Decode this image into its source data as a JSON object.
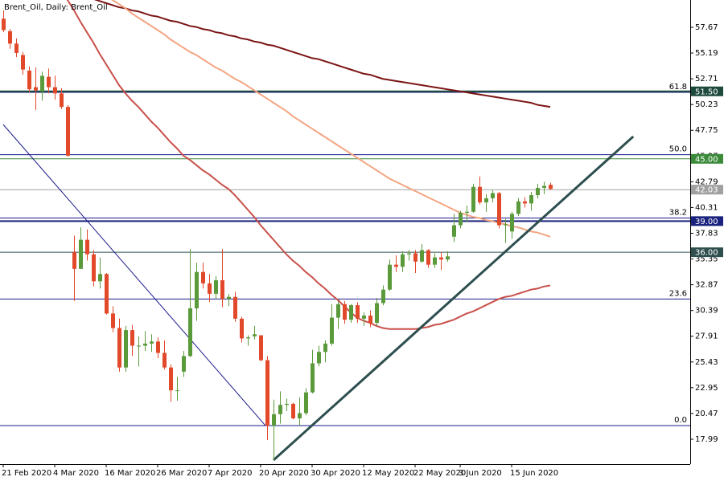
{
  "chart_data": {
    "type": "candlestick",
    "title": "Brent_Oil, Daily:  Brent_Oil",
    "categories": [
      "21 Feb 2020",
      null,
      null,
      null,
      null,
      null,
      null,
      null,
      "4 Mar 2020",
      null,
      null,
      null,
      null,
      null,
      null,
      null,
      "16 Mar 2020",
      null,
      null,
      null,
      null,
      null,
      null,
      null,
      "26 Mar 2020",
      null,
      null,
      null,
      null,
      null,
      null,
      null,
      "7 Apr 2020",
      null,
      null,
      null,
      null,
      null,
      null,
      null,
      "20 Apr 2020",
      null,
      null,
      null,
      null,
      null,
      null,
      null,
      "30 Apr 2020",
      null,
      null,
      null,
      null,
      null,
      null,
      null,
      "12 May 2020",
      null,
      null,
      null,
      null,
      null,
      null,
      null,
      "22 May 2020",
      null,
      null,
      null,
      null,
      null,
      null,
      "3 Jun 2020",
      null,
      null,
      null,
      null,
      null,
      null,
      null,
      "15 Jun 2020",
      null,
      null,
      null,
      null,
      null,
      null
    ],
    "open": [
      58.5,
      57.3,
      56.1,
      55.0,
      53.5,
      51.9,
      51.5,
      52.9,
      51.9,
      51.3,
      50.0,
      36.0,
      34.4,
      37.2,
      35.8,
      33.2,
      33.9,
      30.1,
      28.7,
      24.9,
      28.5,
      27.0,
      27.0,
      27.2,
      27.4,
      26.3,
      24.9,
      22.7,
      24.5,
      26.0,
      30.6,
      34.1,
      33.0,
      32.0,
      33.3,
      31.5,
      31.7,
      29.6,
      27.7,
      27.9,
      28.0,
      25.6,
      19.3,
      20.4,
      21.3,
      21.4,
      20.0,
      20.5,
      22.5,
      25.3,
      26.4,
      27.2,
      29.7,
      31.0,
      29.5,
      30.9,
      29.6,
      29.9,
      29.2,
      31.1,
      32.4,
      34.8,
      34.6,
      35.8,
      35.9,
      35.1,
      36.2,
      34.8,
      35.5,
      35.3,
      37.5,
      38.6,
      39.8,
      39.9,
      42.3,
      40.8,
      41.2,
      41.7,
      38.6,
      38.0,
      39.7,
      40.9,
      40.7,
      41.5,
      42.2,
      42.5
    ],
    "high": [
      59.3,
      57.5,
      56.6,
      55.3,
      53.9,
      53.8,
      53.4,
      53.7,
      53.0,
      51.8,
      50.2,
      37.6,
      38.4,
      38.2,
      36.2,
      35.5,
      34.0,
      30.8,
      29.6,
      28.9,
      29.0,
      27.9,
      28.4,
      28.1,
      27.8,
      27.5,
      25.2,
      24.0,
      26.5,
      36.3,
      35.0,
      35.0,
      33.9,
      33.7,
      36.3,
      32.0,
      32.2,
      29.8,
      28.0,
      28.9,
      28.0,
      26.0,
      21.8,
      22.6,
      21.9,
      21.5,
      22.0,
      22.9,
      26.6,
      27.0,
      27.5,
      31.0,
      31.3,
      31.3,
      31.0,
      31.2,
      30.2,
      30.4,
      31.6,
      32.8,
      35.3,
      35.7,
      36.1,
      36.2,
      36.2,
      36.8,
      36.3,
      35.9,
      36.0,
      36.1,
      39.7,
      40.0,
      40.5,
      42.6,
      43.3,
      41.6,
      42.0,
      41.8,
      39.2,
      39.9,
      41.2,
      41.3,
      41.8,
      42.6,
      42.8,
      42.7
    ],
    "low": [
      57.2,
      55.6,
      54.8,
      53.1,
      51.4,
      49.7,
      50.6,
      51.3,
      50.7,
      49.8,
      45.2,
      31.3,
      34.4,
      35.2,
      32.7,
      32.5,
      30.0,
      28.3,
      24.5,
      24.5,
      26.0,
      25.0,
      26.5,
      26.4,
      25.8,
      24.7,
      21.6,
      21.7,
      24.0,
      25.9,
      29.4,
      32.5,
      31.2,
      31.5,
      30.7,
      30.8,
      29.3,
      27.3,
      27.0,
      27.6,
      25.5,
      17.9,
      16.0,
      19.5,
      20.7,
      19.9,
      19.3,
      20.3,
      22.4,
      25.0,
      25.4,
      27.0,
      28.6,
      29.1,
      29.2,
      29.2,
      28.9,
      28.8,
      28.9,
      30.9,
      32.3,
      34.1,
      34.1,
      35.2,
      34.0,
      35.0,
      34.5,
      34.5,
      34.3,
      35.1,
      37.0,
      38.3,
      38.9,
      39.8,
      40.6,
      39.9,
      40.8,
      38.3,
      36.9,
      37.3,
      39.5,
      40.3,
      40.0,
      41.2,
      41.6,
      42.0
    ],
    "close": [
      57.4,
      56.1,
      55.2,
      53.6,
      51.7,
      51.6,
      53.0,
      51.9,
      51.3,
      50.0,
      45.3,
      34.4,
      37.2,
      35.8,
      33.2,
      33.9,
      30.1,
      28.7,
      24.9,
      28.5,
      27.0,
      27.0,
      27.2,
      27.4,
      26.3,
      24.9,
      22.7,
      22.7,
      26.0,
      30.6,
      34.1,
      33.0,
      32.0,
      33.3,
      31.5,
      31.7,
      29.6,
      27.7,
      27.8,
      28.1,
      25.6,
      19.3,
      20.4,
      21.3,
      21.4,
      20.0,
      20.5,
      22.5,
      25.3,
      26.4,
      27.2,
      29.7,
      31.0,
      29.5,
      30.9,
      29.6,
      29.9,
      29.2,
      31.1,
      32.4,
      34.8,
      34.6,
      35.8,
      35.9,
      35.1,
      36.2,
      34.8,
      35.5,
      35.3,
      35.6,
      38.6,
      39.8,
      39.9,
      42.3,
      40.8,
      41.2,
      41.7,
      38.6,
      38.7,
      39.7,
      40.9,
      40.7,
      41.5,
      42.2,
      42.4,
      42.1
    ],
    "up_color": "#5b9a3b",
    "down_color": "#e2492b",
    "xlim": [
      -0.5,
      106.75
    ],
    "ylim": [
      15.59,
      60.3
    ],
    "yticks": [
      57.67,
      55.19,
      52.71,
      50.23,
      47.75,
      45.27,
      42.79,
      40.31,
      37.83,
      35.35,
      32.87,
      30.39,
      27.91,
      25.43,
      22.95,
      20.47,
      17.99
    ],
    "moving_averages": [
      {
        "color": "#7b1414",
        "values": [
          63.2,
          63.0,
          62.8,
          62.6,
          62.4,
          62.2,
          62.0,
          61.8,
          61.6,
          61.4,
          61.2,
          61.0,
          60.8,
          60.6,
          60.4,
          60.2,
          60.0,
          59.8,
          59.6,
          59.5,
          59.3,
          59.2,
          59.0,
          58.8,
          58.7,
          58.5,
          58.3,
          58.2,
          58.0,
          57.8,
          57.7,
          57.5,
          57.4,
          57.2,
          57.1,
          56.9,
          56.8,
          56.6,
          56.5,
          56.3,
          56.2,
          56.0,
          55.9,
          55.7,
          55.5,
          55.3,
          55.1,
          54.9,
          54.7,
          54.6,
          54.4,
          54.2,
          54.0,
          53.8,
          53.6,
          53.4,
          53.2,
          53.1,
          52.9,
          52.7,
          52.6,
          52.5,
          52.4,
          52.3,
          52.2,
          52.1,
          52.0,
          51.9,
          51.8,
          51.7,
          51.6,
          51.5,
          51.4,
          51.3,
          51.2,
          51.1,
          51.0,
          50.9,
          50.8,
          50.7,
          50.6,
          50.5,
          50.4,
          50.2,
          50.1,
          50.0
        ]
      },
      {
        "color": "#f4a582",
        "values": [
          67.9,
          67.5,
          67.0,
          66.6,
          66.1,
          65.7,
          65.2,
          64.8,
          64.3,
          63.9,
          63.4,
          63.0,
          62.5,
          62.1,
          61.6,
          61.2,
          60.7,
          60.3,
          59.9,
          59.5,
          59.0,
          58.6,
          58.2,
          57.8,
          57.4,
          57.0,
          56.5,
          56.1,
          55.7,
          55.3,
          55.0,
          54.6,
          54.2,
          53.8,
          53.5,
          53.1,
          52.7,
          52.4,
          52.0,
          51.6,
          51.2,
          50.8,
          50.4,
          50.0,
          49.6,
          49.1,
          48.7,
          48.3,
          47.9,
          47.5,
          47.1,
          46.7,
          46.3,
          45.9,
          45.5,
          45.1,
          44.7,
          44.3,
          43.9,
          43.5,
          43.1,
          42.8,
          42.5,
          42.2,
          41.9,
          41.6,
          41.3,
          41.0,
          40.7,
          40.4,
          40.1,
          39.8,
          39.6,
          39.4,
          39.3,
          39.1,
          39.0,
          38.8,
          38.7,
          38.5,
          38.4,
          38.2,
          38.0,
          37.9,
          37.7,
          37.5
        ]
      },
      {
        "color": "#c9504a",
        "values": [
          71.3,
          70.2,
          69.1,
          68.0,
          66.9,
          65.8,
          64.7,
          63.6,
          62.5,
          61.4,
          60.3,
          59.3,
          58.2,
          57.2,
          56.2,
          55.1,
          54.1,
          53.1,
          52.1,
          51.3,
          50.6,
          50.0,
          49.3,
          48.6,
          48.0,
          47.3,
          46.6,
          46.0,
          45.3,
          44.9,
          44.4,
          43.9,
          43.5,
          43.0,
          42.5,
          42.1,
          41.5,
          40.8,
          40.1,
          39.4,
          38.6,
          37.9,
          37.2,
          36.5,
          35.8,
          35.2,
          34.7,
          34.1,
          33.6,
          33.0,
          32.5,
          31.9,
          31.4,
          30.8,
          30.2,
          29.7,
          29.4,
          29.2,
          28.9,
          28.7,
          28.6,
          28.6,
          28.6,
          28.6,
          28.6,
          28.7,
          28.8,
          29.0,
          29.1,
          29.3,
          29.5,
          29.8,
          30.1,
          30.3,
          30.6,
          30.9,
          31.2,
          31.5,
          31.7,
          31.8,
          32.0,
          32.2,
          32.4,
          32.5,
          32.7,
          32.8
        ]
      }
    ],
    "levels": [
      {
        "price": {
          "value": 51.5,
          "label": "51.50"
        },
        "color": "#1d4a3c",
        "width": 2
      },
      {
        "price": {
          "value": 45,
          "label": "45.00"
        },
        "color": "#3a8a3a",
        "width": 1
      },
      {
        "price": {
          "value": 42.03,
          "label": "42.03"
        },
        "color": "#a0a0a0",
        "width": 1
      },
      {
        "price": {
          "value": 39,
          "label": "39.00"
        },
        "color": "#1a237e",
        "width": 2
      },
      {
        "price": {
          "value": 36,
          "label": "36.00"
        },
        "color": "#2f4f4f",
        "width": 1
      }
    ],
    "fibonacci": {
      "color": "#1a1a8c",
      "levels": [
        {
          "level": 61.8,
          "price": 51.4
        },
        {
          "level": {
            "value": 50,
            "label": "50.0"
          },
          "price": 45.4
        },
        {
          "level": 38.2,
          "price": 39.3
        },
        {
          "level": 23.6,
          "price": 31.5
        },
        {
          "level": {
            "value": 0,
            "label": "0.0"
          },
          "price": 19.3
        }
      ]
    },
    "trendlines": [
      {
        "color": "#1a1a8c",
        "width": 1,
        "x": [
          0,
          40.75
        ],
        "values": [
          48.3,
          19.3
        ]
      },
      {
        "color": "#2f4f4f",
        "width": 3,
        "x": [
          42,
          97.9
        ],
        "values": [
          15.98,
          47.15
        ]
      }
    ]
  }
}
